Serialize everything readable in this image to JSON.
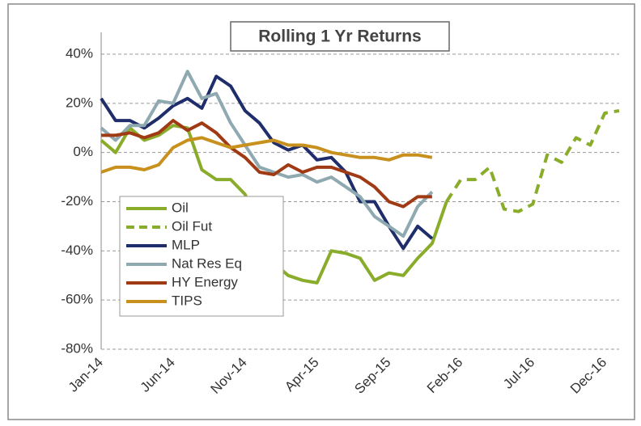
{
  "chart_data": {
    "type": "line",
    "title": "Rolling 1 Yr Returns",
    "categories": [
      "Jan-14",
      null,
      null,
      null,
      null,
      "Jun-14",
      null,
      null,
      null,
      null,
      "Nov-14",
      null,
      null,
      null,
      null,
      "Apr-15",
      null,
      null,
      null,
      null,
      "Sep-15",
      null,
      null,
      null,
      null,
      "Feb-16",
      null,
      null,
      null,
      null,
      "Jul-16",
      null,
      null,
      null,
      null,
      "Dec-16",
      null
    ],
    "series": [
      {
        "name": "Oil",
        "color": "#8aac2b",
        "dash": false,
        "values": [
          5,
          0,
          10,
          5,
          7,
          11,
          10,
          -7,
          -11,
          -11,
          -17,
          -30,
          -45,
          -50,
          -52,
          -53,
          -40,
          -41,
          -43,
          -52,
          -49,
          -50,
          -43,
          -37,
          -20,
          null,
          null,
          null,
          null,
          null,
          null,
          null,
          null,
          null,
          null,
          null,
          null
        ]
      },
      {
        "name": "Oil Fut",
        "color": "#8aac2b",
        "dash": true,
        "values": [
          null,
          null,
          null,
          null,
          null,
          null,
          null,
          null,
          null,
          null,
          null,
          null,
          null,
          null,
          null,
          null,
          null,
          null,
          null,
          null,
          null,
          null,
          null,
          null,
          -20,
          -11,
          -11,
          -6,
          -23,
          -24,
          -21,
          -1,
          -4,
          6,
          3,
          16,
          17
        ]
      },
      {
        "name": "MLP",
        "color": "#1f2d6b",
        "dash": false,
        "values": [
          22,
          13,
          13,
          10,
          14,
          19,
          22,
          18,
          31,
          27,
          17,
          12,
          4,
          1,
          3,
          -3,
          -2,
          -8,
          -20,
          -20,
          -30,
          -39,
          -30,
          -35,
          null,
          null,
          null,
          null,
          null,
          null,
          null,
          null,
          null,
          null,
          null,
          null,
          null
        ]
      },
      {
        "name": "Nat Res Eq",
        "color": "#8fa9b0",
        "dash": false,
        "values": [
          10,
          5,
          11,
          11,
          21,
          20,
          33,
          22,
          24,
          12,
          3,
          -6,
          -8,
          -10,
          -9,
          -12,
          -10,
          -14,
          -18,
          -26,
          -30,
          -34,
          -22,
          -16,
          null,
          null,
          null,
          null,
          null,
          null,
          null,
          null,
          null,
          null,
          null,
          null,
          null
        ]
      },
      {
        "name": "HY Energy",
        "color": "#a03a14",
        "dash": false,
        "values": [
          7,
          7,
          8,
          6,
          8,
          13,
          9,
          12,
          8,
          2,
          -2,
          -8,
          -9,
          -5,
          -8,
          -6,
          -6,
          -8,
          -10,
          -14,
          -20,
          -22,
          -18,
          -18,
          null,
          null,
          null,
          null,
          null,
          null,
          null,
          null,
          null,
          null,
          null,
          null,
          null
        ]
      },
      {
        "name": "TIPS",
        "color": "#c8901c",
        "dash": false,
        "values": [
          -8,
          -6,
          -6,
          -7,
          -5,
          2,
          5,
          6,
          4,
          2,
          3,
          4,
          5,
          3,
          3,
          2,
          0,
          -1,
          -2,
          -2,
          -3,
          -1,
          -1,
          -2,
          null,
          null,
          null,
          null,
          null,
          null,
          null,
          null,
          null,
          null,
          null,
          null,
          null
        ]
      }
    ],
    "ylim": [
      -80,
      40
    ],
    "yticks": [
      {
        "value": -80,
        "label": "-80%"
      },
      {
        "value": -60,
        "label": "-60%"
      },
      {
        "value": -40,
        "label": "-40%"
      },
      {
        "value": -20,
        "label": "-20%"
      },
      {
        "value": 0,
        "label": "0%"
      },
      {
        "value": 20,
        "label": "20%"
      },
      {
        "value": 40,
        "label": "40%"
      }
    ],
    "grid": true,
    "legend": "lower-left"
  }
}
